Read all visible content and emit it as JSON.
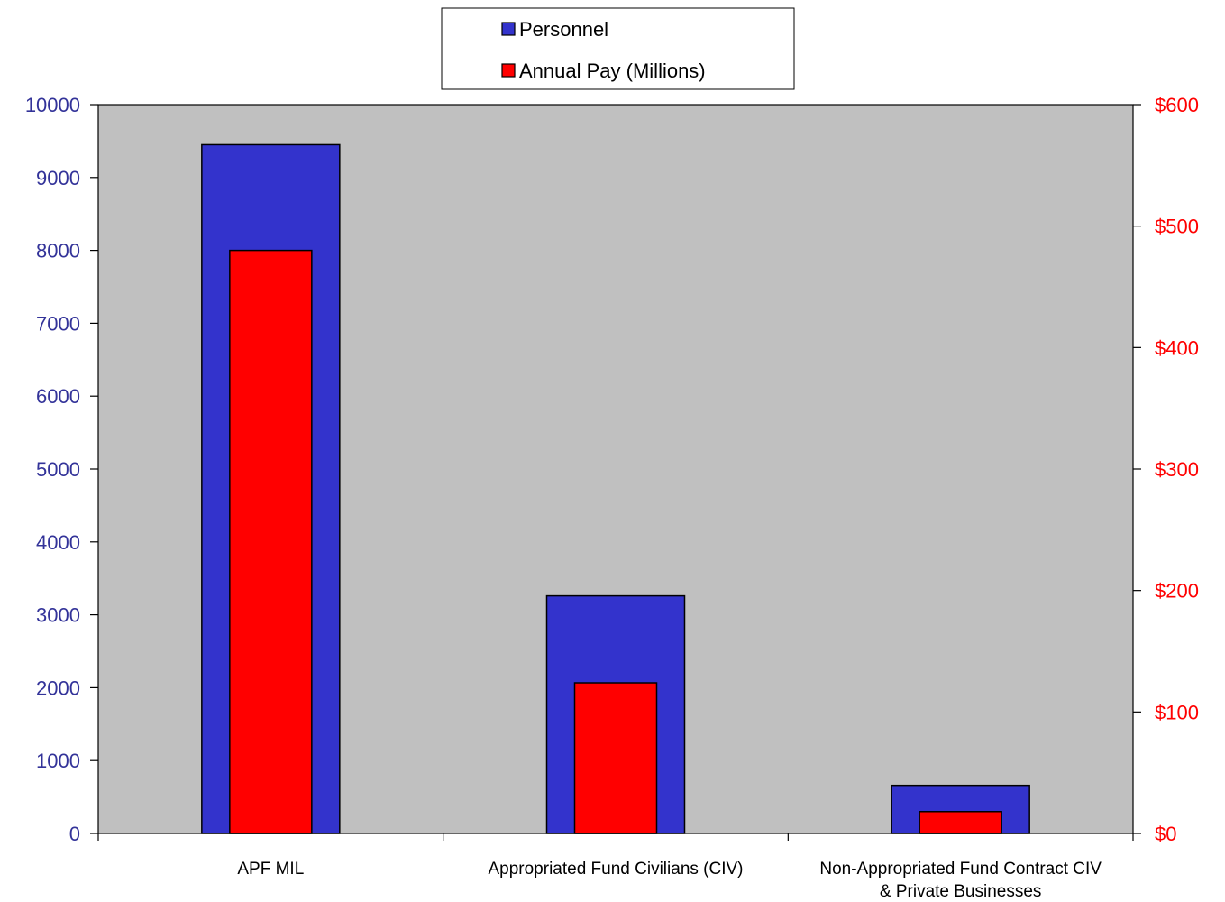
{
  "chart_data": {
    "type": "bar",
    "categories": [
      [
        "APF MIL"
      ],
      [
        "Appropriated Fund Civilians (CIV)"
      ],
      [
        "Non-Appropriated Fund Contract CIV",
        "& Private Businesses"
      ]
    ],
    "series": [
      {
        "name": "Personnel",
        "axis": "left",
        "color": "#3333cc",
        "values": [
          9450,
          3260,
          660
        ]
      },
      {
        "name": "Annual Pay (Millions)",
        "axis": "right",
        "color": "#ff0000",
        "values": [
          480,
          124,
          18
        ]
      }
    ],
    "y_left": {
      "range": [
        0,
        10000
      ],
      "ticks": [
        0,
        1000,
        2000,
        3000,
        4000,
        5000,
        6000,
        7000,
        8000,
        9000,
        10000
      ],
      "tick_labels": [
        "0",
        "1000",
        "2000",
        "3000",
        "4000",
        "5000",
        "6000",
        "7000",
        "8000",
        "9000",
        "10000"
      ],
      "color": "#333399"
    },
    "y_right": {
      "range": [
        0,
        600
      ],
      "ticks": [
        0,
        100,
        200,
        300,
        400,
        500,
        600
      ],
      "tick_labels": [
        "$0",
        "$100",
        "$200",
        "$300",
        "$400",
        "$500",
        "$600"
      ],
      "color": "#ff0000"
    },
    "plot_background": "#c0c0c0",
    "grid": false,
    "legend_position": "top-center",
    "title": "",
    "xlabel": "",
    "ylabel": ""
  }
}
